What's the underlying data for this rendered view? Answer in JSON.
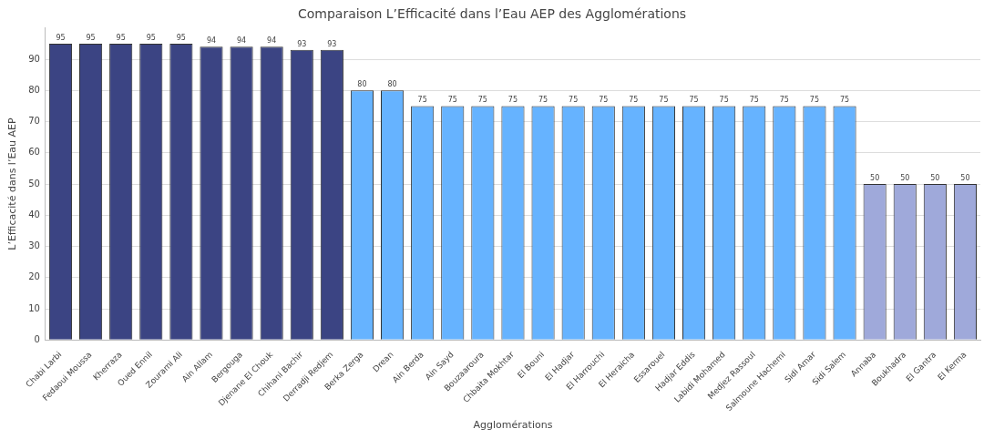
{
  "chart_data": {
    "type": "bar",
    "title": "Comparaison L’Efficacité dans l’Eau AEP des Agglomérations",
    "xlabel": "Agglomérations",
    "ylabel": "L’Efficacité dans l’Eau AEP",
    "categories": [
      "Chabi Larbi",
      "Fedaoui Moussa",
      "Kherraza",
      "Oued Ennil",
      "Zourami Ali",
      "Ain Allam",
      "Bergouga",
      "Djenane El Chouk",
      "Chihani Bachir",
      "Derradji Redjem",
      "Berka Zerga",
      "Drean",
      "Ain Berda",
      "Ain Sayd",
      "Bouzaaroura",
      "Chbaita Mokhtar",
      "El Bouni",
      "El Hadjar",
      "El Harrouchi",
      "El Heraicha",
      "Essarouel",
      "Hadjar Eddis",
      "Labidi Mohamed",
      "Medjez Rassoul",
      "Salmoune Hachemi",
      "Sidi Amar",
      "Sidi Salem",
      "Annaba",
      "Boukhadra",
      "El Gantra",
      "El Kerma"
    ],
    "values": [
      95,
      95,
      95,
      95,
      95,
      94,
      94,
      94,
      93,
      93,
      80,
      80,
      75,
      75,
      75,
      75,
      75,
      75,
      75,
      75,
      75,
      75,
      75,
      75,
      75,
      75,
      75,
      50,
      50,
      50,
      50
    ],
    "colors": [
      "#3b4483",
      "#3b4483",
      "#3b4483",
      "#3b4483",
      "#3b4483",
      "#3b4483",
      "#3b4483",
      "#3b4483",
      "#3b4483",
      "#3b4483",
      "#66b3ff",
      "#66b3ff",
      "#66b3ff",
      "#66b3ff",
      "#66b3ff",
      "#66b3ff",
      "#66b3ff",
      "#66b3ff",
      "#66b3ff",
      "#66b3ff",
      "#66b3ff",
      "#66b3ff",
      "#66b3ff",
      "#66b3ff",
      "#66b3ff",
      "#66b3ff",
      "#66b3ff",
      "#9fa9da",
      "#9fa9da",
      "#9fa9da",
      "#9fa9da"
    ],
    "ylim": [
      0,
      100
    ],
    "yticks": [
      0,
      10,
      20,
      30,
      40,
      50,
      60,
      70,
      80,
      90
    ],
    "grid": "y",
    "data_labels": true
  }
}
